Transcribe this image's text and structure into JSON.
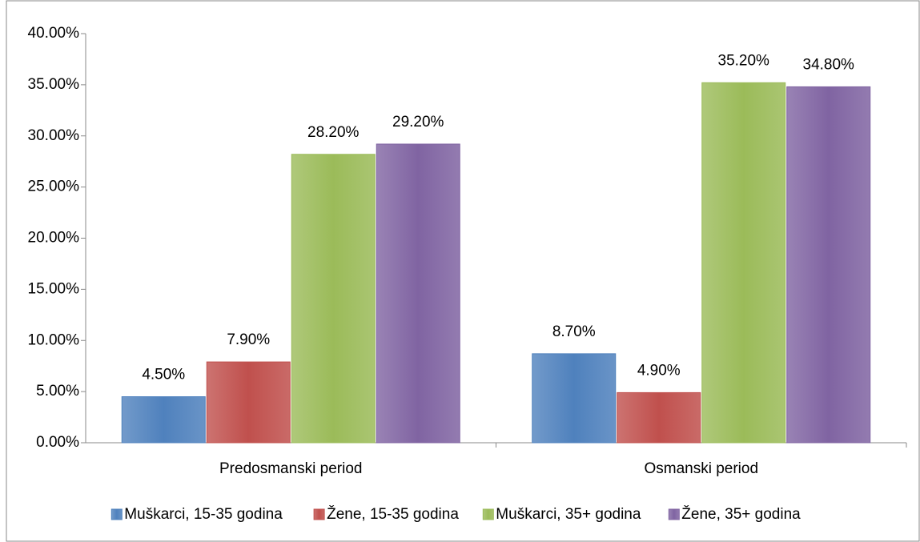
{
  "chart_data": {
    "type": "bar",
    "categories": [
      "Predosmanski period",
      "Osmanski period"
    ],
    "series": [
      {
        "name": "Muškarci, 15-35 godina",
        "color": "#4f81bd",
        "values": [
          4.5,
          8.7
        ],
        "value_labels": [
          "4.50%",
          "8.70%"
        ]
      },
      {
        "name": "Žene, 15-35 godina",
        "color": "#c0504d",
        "values": [
          7.9,
          4.9
        ],
        "value_labels": [
          "7.90%",
          "4.90%"
        ]
      },
      {
        "name": "Muškarci, 35+ godina",
        "color": "#9bbb59",
        "values": [
          28.2,
          35.2
        ],
        "value_labels": [
          "28.20%",
          "35.20%"
        ]
      },
      {
        "name": "Žene, 35+ godina",
        "color": "#8064a2",
        "values": [
          29.2,
          34.8
        ],
        "value_labels": [
          "29.20%",
          "34.80%"
        ]
      }
    ],
    "ylim": [
      0,
      40
    ],
    "yticks": [
      {
        "value": 0,
        "label": "0.00%"
      },
      {
        "value": 5,
        "label": "5.00%"
      },
      {
        "value": 10,
        "label": "10.00%"
      },
      {
        "value": 15,
        "label": "15.00%"
      },
      {
        "value": 20,
        "label": "20.00%"
      },
      {
        "value": 25,
        "label": "25.00%"
      },
      {
        "value": 30,
        "label": "30.00%"
      },
      {
        "value": 35,
        "label": "35.00%"
      },
      {
        "value": 40,
        "label": "40.00%"
      }
    ],
    "grid": false,
    "legend": "bottom"
  }
}
